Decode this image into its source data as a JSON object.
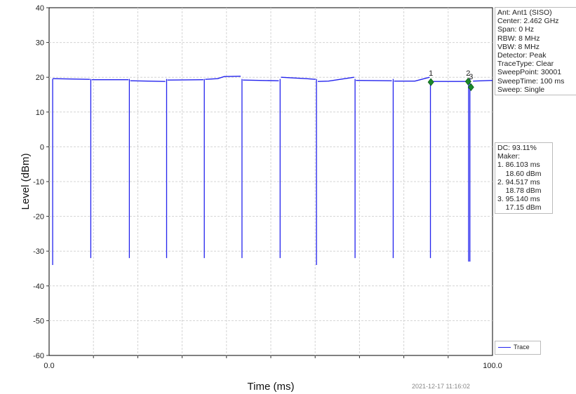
{
  "chart_data": {
    "type": "line",
    "xlabel": "Time (ms)",
    "ylabel": "Level (dBm)",
    "xlim": [
      0,
      100
    ],
    "ylim": [
      -60,
      40
    ],
    "x_ticks": [
      0,
      100
    ],
    "x_tick_labels": [
      "0.0",
      "100.0"
    ],
    "y_ticks": [
      40,
      30,
      20,
      10,
      0,
      -10,
      -20,
      -30,
      -40,
      -50,
      -60
    ],
    "grid": true,
    "series": [
      {
        "name": "Trace",
        "color": "#2222ee",
        "segments": [
          {
            "x": [
              0.8,
              9.2
            ],
            "y": [
              19.6,
              19.4
            ]
          },
          {
            "x": [
              9.6,
              17.9
            ],
            "y": [
              19.3,
              19.3
            ]
          },
          {
            "x": [
              18.3,
              26.2
            ],
            "y": [
              19.0,
              18.8
            ]
          },
          {
            "x": [
              26.7,
              34.8
            ],
            "y": [
              19.2,
              19.3
            ]
          },
          {
            "x": [
              35.2,
              38.0,
              39.5,
              43.2
            ],
            "y": [
              19.4,
              19.6,
              20.2,
              20.3
            ]
          },
          {
            "x": [
              43.7,
              51.8
            ],
            "y": [
              19.2,
              19.0
            ]
          },
          {
            "x": [
              52.3,
              58.0,
              60.1
            ],
            "y": [
              20.0,
              19.6,
              19.4
            ]
          },
          {
            "x": [
              60.6,
              63.0,
              68.8
            ],
            "y": [
              18.8,
              18.9,
              20.0
            ]
          },
          {
            "x": [
              69.2,
              77.3
            ],
            "y": [
              19.1,
              19.0
            ]
          },
          {
            "x": [
              77.8,
              82.5,
              85.8
            ],
            "y": [
              18.9,
              18.9,
              20.0
            ]
          },
          {
            "x": [
              86.3,
              94.0
            ],
            "y": [
              18.8,
              18.8
            ]
          },
          {
            "x": [
              95.6,
              100.0
            ],
            "y": [
              18.9,
              19.1
            ]
          }
        ],
        "dips": [
          {
            "x": 0.8,
            "min": -34
          },
          {
            "x": 9.4,
            "min": -32
          },
          {
            "x": 18.1,
            "min": -32
          },
          {
            "x": 26.5,
            "min": -32
          },
          {
            "x": 35.0,
            "min": -32
          },
          {
            "x": 43.5,
            "min": -32
          },
          {
            "x": 52.1,
            "min": -32
          },
          {
            "x": 60.3,
            "min": -34
          },
          {
            "x": 69.0,
            "min": -32
          },
          {
            "x": 77.6,
            "min": -32
          },
          {
            "x": 86.0,
            "min": -32
          },
          {
            "x": 94.6,
            "min": -33
          },
          {
            "x": 94.9,
            "min": -33
          }
        ]
      }
    ],
    "markers": [
      {
        "label": "1",
        "x": 86.103,
        "y": 18.6,
        "label_y": 20.0
      },
      {
        "label": "2",
        "x": 94.517,
        "y": 18.78,
        "label_y": 20.0
      },
      {
        "label": "3",
        "x": 95.14,
        "y": 17.15,
        "label_y": 19.0
      }
    ],
    "legend": "bottom-right"
  },
  "info_lines": [
    "Ant: Ant1 (SISO)",
    "Center: 2.462 GHz",
    "Span: 0 Hz",
    "RBW: 8 MHz",
    "VBW: 8 MHz",
    "Detector: Peak",
    "TraceType: Clear",
    "SweepPoint: 30001",
    "SweepTime: 100 ms",
    "Sweep: Single"
  ],
  "measurement_lines": [
    "DC: 93.11%",
    "Maker:",
    "1. 86.103 ms",
    "    18.60 dBm",
    "2. 94.517 ms",
    "    18.78 dBm",
    "3. 95.140 ms",
    "    17.15 dBm"
  ],
  "legend_label": "Trace",
  "timestamp": "2021-12-17 11:16:02"
}
